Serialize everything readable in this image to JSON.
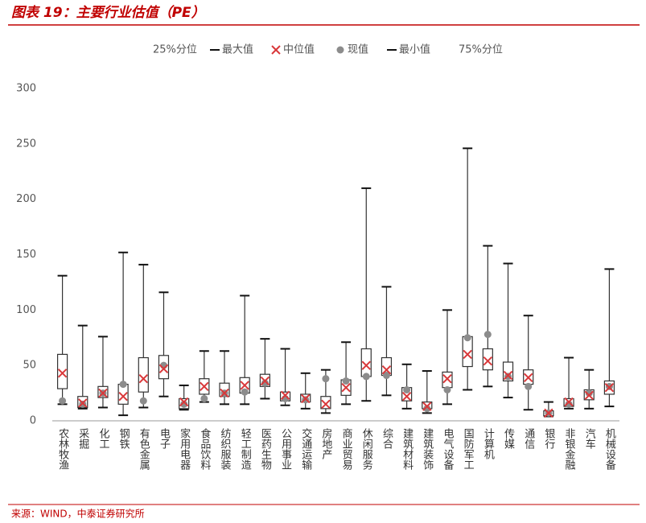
{
  "title": "图表 19：主要行业估值（PE）",
  "source": "来源：WIND，中泰证券研究所",
  "chart_data": {
    "type": "box",
    "categories": [
      "农林牧渔",
      "采掘",
      "化工",
      "钢铁",
      "有色金属",
      "电子",
      "家用电器",
      "食品饮料",
      "纺织服装",
      "轻工制造",
      "医药生物",
      "公用事业",
      "交通运输",
      "房地产",
      "商业贸易",
      "休闲服务",
      "综合",
      "建筑材料",
      "建筑装饰",
      "电气设备",
      "国防军工",
      "计算机",
      "传媒",
      "通信",
      "银行",
      "非银金融",
      "汽车",
      "机械设备"
    ],
    "series": [
      {
        "name": "25%分位",
        "role": "q1",
        "marker": "none",
        "color": "#333333",
        "values": [
          29,
          12,
          21,
          15,
          26,
          38,
          11,
          24,
          22,
          25,
          31,
          18,
          17,
          11,
          23,
          40,
          41,
          18,
          11,
          30,
          49,
          46,
          36,
          33,
          4.5,
          13,
          19,
          24
        ]
      },
      {
        "name": "最大值",
        "role": "max",
        "marker": "dash",
        "color": "#111111",
        "values": [
          131,
          86,
          76,
          152,
          141,
          116,
          32,
          63,
          63,
          113,
          74,
          65,
          43,
          46,
          71,
          210,
          121,
          51,
          45,
          100,
          246,
          158,
          142,
          95,
          17,
          57,
          46,
          137
        ]
      },
      {
        "name": "中位值",
        "role": "median",
        "marker": "x",
        "color": "#d9383a",
        "values": [
          43,
          16,
          25,
          22,
          38,
          47,
          17,
          31,
          25,
          32,
          36,
          23,
          20,
          15,
          30,
          50,
          46,
          22,
          13,
          38,
          60,
          54,
          41,
          39,
          7,
          17,
          23,
          30
        ]
      },
      {
        "name": "现值",
        "role": "current",
        "marker": "dot",
        "color": "#8c8c8c",
        "values": [
          18,
          15,
          25,
          33,
          18,
          50,
          15,
          20,
          25,
          26,
          34,
          20,
          19,
          38,
          36,
          40,
          41,
          28,
          11,
          28,
          75,
          78,
          40,
          31,
          7,
          15,
          25,
          31
        ]
      },
      {
        "name": "最小值",
        "role": "min",
        "marker": "dash",
        "color": "#111111",
        "values": [
          15,
          11,
          12,
          5,
          12,
          22,
          10,
          17,
          15,
          15,
          20,
          14,
          11,
          7,
          15,
          18,
          23,
          11,
          7,
          15,
          28,
          31,
          21,
          10,
          4,
          11,
          11,
          13
        ]
      },
      {
        "name": "75%分位",
        "role": "q3",
        "marker": "none",
        "color": "#333333",
        "values": [
          60,
          22,
          31,
          33,
          57,
          59,
          20,
          38,
          34,
          39,
          42,
          26,
          24,
          22,
          37,
          65,
          57,
          30,
          17,
          44,
          76,
          65,
          53,
          46,
          9,
          20,
          28,
          36
        ]
      }
    ],
    "ylim": [
      0,
      300
    ],
    "yticks": [
      0,
      50,
      100,
      150,
      200,
      250,
      300
    ]
  }
}
